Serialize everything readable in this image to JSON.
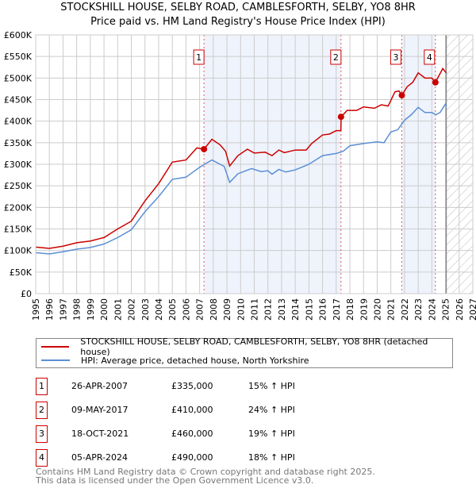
{
  "chart_data": {
    "type": "line",
    "title": "STOCKSHILL HOUSE, SELBY ROAD, CAMBLESFORTH, SELBY, YO8 8HR",
    "subtitle": "Price paid vs. HM Land Registry's House Price Index (HPI)",
    "xlim": [
      1995,
      2027
    ],
    "ylim": [
      0,
      600000
    ],
    "y_ticks": [
      "£0",
      "£50K",
      "£100K",
      "£150K",
      "£200K",
      "£250K",
      "£300K",
      "£350K",
      "£400K",
      "£450K",
      "£500K",
      "£550K",
      "£600K"
    ],
    "x_ticks": [
      "1995",
      "1996",
      "1997",
      "1998",
      "1999",
      "2000",
      "2001",
      "2002",
      "2003",
      "2004",
      "2005",
      "2006",
      "2007",
      "2008",
      "2009",
      "2010",
      "2011",
      "2012",
      "2013",
      "2014",
      "2015",
      "2016",
      "2017",
      "2018",
      "2019",
      "2020",
      "2021",
      "2022",
      "2023",
      "2024",
      "2025",
      "2026",
      "2027"
    ],
    "grid": true,
    "shaded_periods": [
      [
        2007.32,
        2017.35
      ],
      [
        2021.8,
        2024.26
      ]
    ],
    "forecast_hatch_from": 2025.05,
    "series": [
      {
        "name": "STOCKSHILL HOUSE, SELBY ROAD, CAMBLESFORTH, SELBY, YO8 8HR (detached house)",
        "color": "#cc0000",
        "x": [
          1995,
          1996,
          1997,
          1998,
          1999,
          2000,
          2001,
          2002,
          2003,
          2004,
          2005,
          2006,
          2006.8,
          2007.32,
          2007.9,
          2008.5,
          2008.9,
          2009.2,
          2009.8,
          2010.5,
          2011,
          2011.8,
          2012.3,
          2012.8,
          2013.2,
          2014,
          2014.8,
          2015.2,
          2016,
          2016.5,
          2017,
          2017.34,
          2017.36,
          2017.8,
          2018.5,
          2019,
          2019.8,
          2020.3,
          2020.8,
          2021.3,
          2021.6,
          2021.8,
          2022.2,
          2022.6,
          2023,
          2023.5,
          2024,
          2024.26,
          2024.8,
          2025.05
        ],
        "y": [
          108000,
          105000,
          110000,
          118000,
          122000,
          130000,
          150000,
          168000,
          215000,
          255000,
          305000,
          310000,
          338000,
          335000,
          358000,
          345000,
          330000,
          296000,
          320000,
          335000,
          326000,
          328000,
          320000,
          333000,
          327000,
          333000,
          333000,
          348000,
          368000,
          370000,
          378000,
          378000,
          410000,
          425000,
          425000,
          433000,
          430000,
          438000,
          435000,
          468000,
          470000,
          460000,
          480000,
          490000,
          512000,
          500000,
          500000,
          490000,
          522000,
          512000
        ]
      },
      {
        "name": "HPI: Average price, detached house, North Yorkshire",
        "color": "#5b8fd4",
        "x": [
          1995,
          1996,
          1997,
          1998,
          1999,
          2000,
          2001,
          2002,
          2003,
          2004,
          2005,
          2006,
          2007,
          2007.9,
          2008.8,
          2009.2,
          2009.8,
          2010.8,
          2011.5,
          2012,
          2012.3,
          2012.8,
          2013.3,
          2014,
          2015,
          2016,
          2017,
          2017.5,
          2018,
          2019,
          2020,
          2020.5,
          2021,
          2021.5,
          2022,
          2022.5,
          2023,
          2023.5,
          2024,
          2024.3,
          2024.6,
          2025,
          2025.05
        ],
        "y": [
          95000,
          92000,
          97000,
          103000,
          107000,
          115000,
          130000,
          148000,
          190000,
          225000,
          265000,
          270000,
          293000,
          310000,
          295000,
          258000,
          278000,
          290000,
          283000,
          285000,
          277000,
          288000,
          282000,
          287000,
          300000,
          320000,
          325000,
          330000,
          343000,
          348000,
          352000,
          350000,
          375000,
          380000,
          402000,
          415000,
          432000,
          420000,
          420000,
          415000,
          420000,
          440000,
          435000
        ]
      }
    ],
    "sales": [
      {
        "label": "1",
        "date": "26-APR-2007",
        "x": 2007.32,
        "price": "£335,000",
        "value": 335000,
        "hpi": "15% ↑ HPI"
      },
      {
        "label": "2",
        "date": "09-MAY-2017",
        "x": 2017.35,
        "price": "£410,000",
        "value": 410000,
        "hpi": "24% ↑ HPI"
      },
      {
        "label": "3",
        "date": "18-OCT-2021",
        "x": 2021.8,
        "price": "£460,000",
        "value": 460000,
        "hpi": "19% ↑ HPI"
      },
      {
        "label": "4",
        "date": "05-APR-2024",
        "x": 2024.26,
        "price": "£490,000",
        "value": 490000,
        "hpi": "18% ↑ HPI"
      }
    ]
  },
  "legend": {
    "red": "STOCKSHILL HOUSE, SELBY ROAD, CAMBLESFORTH, SELBY, YO8 8HR (detached house)",
    "blue": "HPI: Average price, detached house, North Yorkshire"
  },
  "footer": {
    "line1": "Contains HM Land Registry data © Crown copyright and database right 2025.",
    "line2": "This data is licensed under the Open Government Licence v3.0."
  }
}
